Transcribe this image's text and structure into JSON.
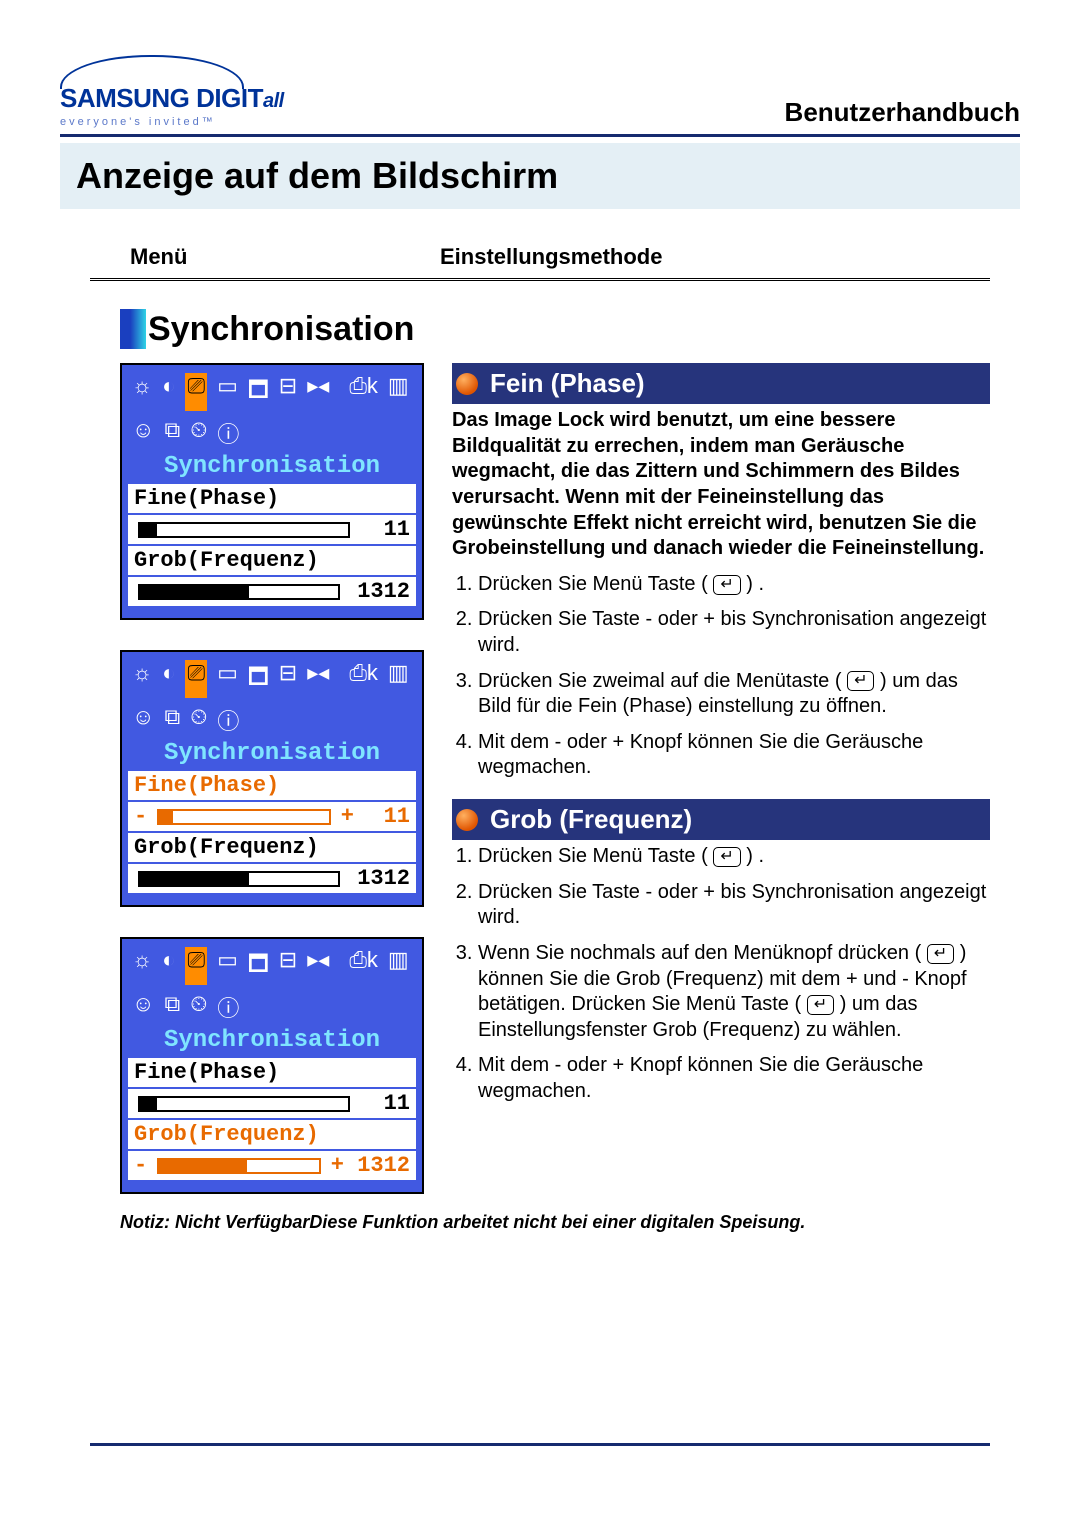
{
  "brand": {
    "name_main": "SAMSUNG DIGIT",
    "name_ital": "all",
    "tagline": "everyone's invited™"
  },
  "header": {
    "manual": "Benutzerhandbuch",
    "page_title": "Anzeige auf dem Bildschirm"
  },
  "labels": {
    "left": "Menü",
    "right": "Einstellungsmethode"
  },
  "section": {
    "title": "Synchronisation"
  },
  "osd": {
    "title": "Synchronisation",
    "fine_label": "Fine(Phase)",
    "fine_value": "11",
    "coarse_label": "Grob(Frequenz)",
    "coarse_value": "1312",
    "minus": "-",
    "plus": "+",
    "panels": [
      {
        "active": "none",
        "fine_bar_pct": 8,
        "coarse_bar_pct": 55
      },
      {
        "active": "fine",
        "fine_bar_pct": 8,
        "coarse_bar_pct": 55
      },
      {
        "active": "coarse",
        "fine_bar_pct": 8,
        "coarse_bar_pct": 55
      }
    ],
    "icons_row1": [
      "☼",
      "◐",
      "⎚",
      "▭",
      "🗖",
      "⊟",
      "▸◂"
    ],
    "icons_row2": [
      "⎙k",
      "▥",
      "☺",
      "⧉",
      "⏲",
      "ⓘ"
    ],
    "selected_icon_index": 2,
    "colors": {
      "panel_bg": "#4159e1",
      "panel_border": "#000000",
      "title_text": "#7fe5ff",
      "active_text": "#e86a00",
      "icon_sel_bg": "#ff8c00"
    }
  },
  "fein": {
    "heading": "Fein (Phase)",
    "intro": "Das Image Lock wird benutzt, um eine bessere Bildqualität zu errechen, indem man Geräusche wegmacht, die das Zittern und Schimmern des Bildes verursacht. Wenn mit der Feineinstellung das gewünschte Effekt nicht erreicht wird, benutzen Sie die Grobeinstellung und danach wieder die Feineinstellung.",
    "s1a": "Drücken Sie Menü Taste (",
    "s1b": ") .",
    "s2": "Drücken Sie Taste - oder + bis Synchronisation angezeigt wird.",
    "s3a": "Drücken Sie zweimal auf die Menütaste (",
    "s3b": ") um das Bild für die Fein (Phase) einstellung zu öffnen.",
    "s4": "Mit dem - oder + Knopf können Sie die Geräusche wegmachen."
  },
  "grob": {
    "heading": "Grob (Frequenz)",
    "s1a": "Drücken Sie Menü Taste (",
    "s1b": ") .",
    "s2": "Drücken Sie Taste - oder + bis Synchronisation angezeigt wird.",
    "s3a": "Wenn Sie nochmals auf den Menüknopf drücken (",
    "s3b": ") können Sie die Grob (Frequenz) mit dem + und - Knopf betätigen. Drücken Sie Menü Taste (",
    "s3c": ") um das Einstellungsfenster Grob (Frequenz) zu wählen.",
    "s4": "Mit dem - oder + Knopf können Sie die Geräusche wegmachen."
  },
  "note": "Notiz: Nicht VerfügbarDiese Funktion arbeitet nicht bei einer digitalen Speisung.",
  "enter_glyph": "↵"
}
